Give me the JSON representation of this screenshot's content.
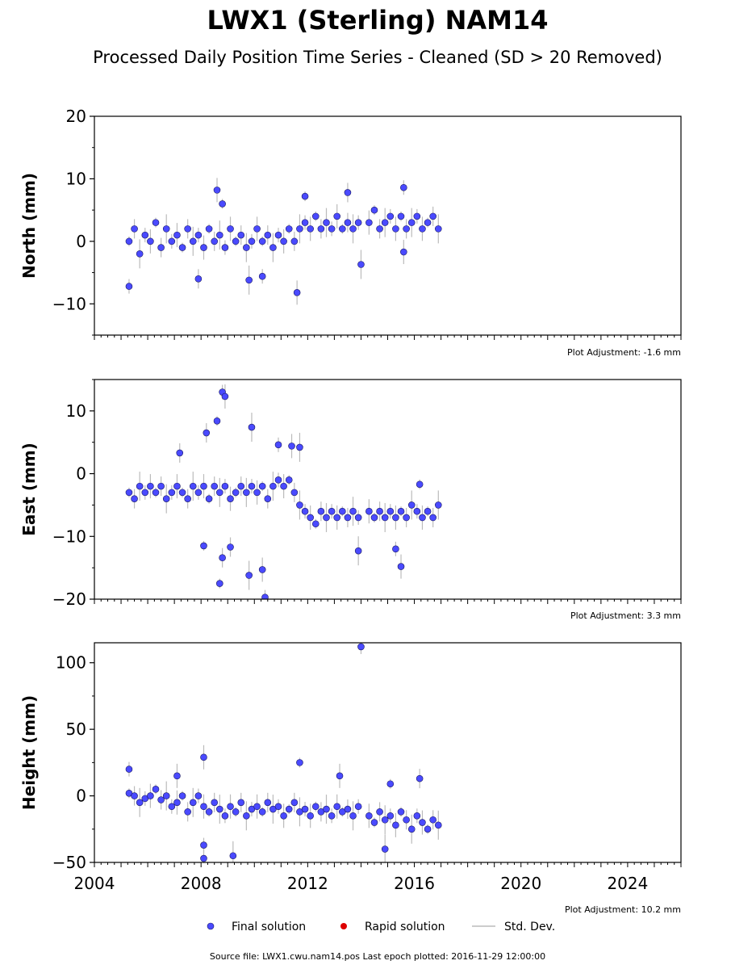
{
  "title": "LWX1 (Sterling) NAM14",
  "subtitle": "Processed Daily Position Time Series - Cleaned (SD > 20 Removed)",
  "colors": {
    "final": "#4a4aff",
    "final_edge": "#1a1a60",
    "rapid": "#dd0000",
    "stddev": "#bbbbbb",
    "axes": "#000000"
  },
  "legend": {
    "final_label": "Final solution",
    "rapid_label": "Rapid solution",
    "std_label": "Std. Dev."
  },
  "footer": {
    "source": "Source file: LWX1.cwu.nam14.pos  Last epoch plotted: 2016-11-29 12:00:00"
  },
  "chart_data": [
    {
      "type": "scatter",
      "ylabel": "North (mm)",
      "ylim": [
        -15,
        20
      ],
      "yticks": [
        -10,
        0,
        10,
        20
      ],
      "xlim": [
        2004,
        2026
      ],
      "adjustment": "Plot Adjustment: -1.6 mm",
      "series": [
        {
          "points": [
            [
              2005.3,
              0
            ],
            [
              2005.5,
              2
            ],
            [
              2005.7,
              -2
            ],
            [
              2005.9,
              1
            ],
            [
              2006.1,
              0
            ],
            [
              2006.3,
              3
            ],
            [
              2006.5,
              -1
            ],
            [
              2006.7,
              2
            ],
            [
              2006.9,
              0
            ],
            [
              2007.1,
              1
            ],
            [
              2007.3,
              -1
            ],
            [
              2007.5,
              2
            ],
            [
              2007.7,
              0
            ],
            [
              2007.9,
              1
            ],
            [
              2008.1,
              -1
            ],
            [
              2008.3,
              2
            ],
            [
              2008.5,
              0
            ],
            [
              2008.7,
              1
            ],
            [
              2008.9,
              -1
            ],
            [
              2009.1,
              2
            ],
            [
              2009.3,
              0
            ],
            [
              2009.5,
              1
            ],
            [
              2009.7,
              -1
            ],
            [
              2009.9,
              0
            ],
            [
              2010.1,
              2
            ],
            [
              2010.3,
              0
            ],
            [
              2010.5,
              1
            ],
            [
              2010.7,
              -1
            ],
            [
              2010.9,
              1
            ],
            [
              2011.1,
              0
            ],
            [
              2011.3,
              2
            ],
            [
              2011.5,
              0
            ],
            [
              2011.7,
              2
            ],
            [
              2011.9,
              3
            ],
            [
              2012.1,
              2
            ],
            [
              2012.3,
              4
            ],
            [
              2012.5,
              2
            ],
            [
              2012.7,
              3
            ],
            [
              2012.9,
              2
            ],
            [
              2013.1,
              4
            ],
            [
              2013.3,
              2
            ],
            [
              2013.5,
              3
            ],
            [
              2013.7,
              2
            ],
            [
              2013.9,
              3
            ],
            [
              2014.3,
              3
            ],
            [
              2014.5,
              5
            ],
            [
              2014.7,
              2
            ],
            [
              2014.9,
              3
            ],
            [
              2015.1,
              4
            ],
            [
              2015.3,
              2
            ],
            [
              2015.5,
              4
            ],
            [
              2015.7,
              2
            ],
            [
              2015.9,
              3
            ],
            [
              2016.1,
              4
            ],
            [
              2016.3,
              2
            ],
            [
              2016.5,
              3
            ],
            [
              2016.7,
              4
            ],
            [
              2016.9,
              2
            ],
            [
              2005.3,
              -7.2
            ],
            [
              2008.6,
              8.2
            ],
            [
              2008.8,
              6
            ],
            [
              2007.9,
              -6
            ],
            [
              2009.8,
              -6.2
            ],
            [
              2010.3,
              -5.6
            ],
            [
              2011.6,
              -8.2
            ],
            [
              2011.9,
              7.2
            ],
            [
              2013.5,
              7.8
            ],
            [
              2014.0,
              -3.7
            ],
            [
              2015.6,
              8.6
            ],
            [
              2015.6,
              -1.7
            ]
          ]
        }
      ]
    },
    {
      "type": "scatter",
      "ylabel": "East (mm)",
      "ylim": [
        -20,
        15
      ],
      "yticks": [
        -20,
        -10,
        0,
        10
      ],
      "xlim": [
        2004,
        2026
      ],
      "adjustment": "Plot Adjustment: 3.3 mm",
      "series": [
        {
          "points": [
            [
              2005.3,
              -3
            ],
            [
              2005.5,
              -4
            ],
            [
              2005.7,
              -2
            ],
            [
              2005.9,
              -3
            ],
            [
              2006.1,
              -2
            ],
            [
              2006.3,
              -3
            ],
            [
              2006.5,
              -2
            ],
            [
              2006.7,
              -4
            ],
            [
              2006.9,
              -3
            ],
            [
              2007.1,
              -2
            ],
            [
              2007.3,
              -3
            ],
            [
              2007.5,
              -4
            ],
            [
              2007.7,
              -2
            ],
            [
              2007.9,
              -3
            ],
            [
              2008.1,
              -2
            ],
            [
              2008.3,
              -4
            ],
            [
              2008.5,
              -2
            ],
            [
              2008.7,
              -3
            ],
            [
              2008.9,
              -2
            ],
            [
              2009.1,
              -4
            ],
            [
              2009.3,
              -3
            ],
            [
              2009.5,
              -2
            ],
            [
              2009.7,
              -3
            ],
            [
              2009.9,
              -2
            ],
            [
              2010.1,
              -3
            ],
            [
              2010.3,
              -2
            ],
            [
              2010.5,
              -4
            ],
            [
              2010.7,
              -2
            ],
            [
              2010.9,
              -1
            ],
            [
              2011.1,
              -2
            ],
            [
              2011.3,
              -1
            ],
            [
              2011.5,
              -3
            ],
            [
              2011.7,
              -5
            ],
            [
              2011.9,
              -6
            ],
            [
              2012.1,
              -7
            ],
            [
              2012.3,
              -8
            ],
            [
              2012.5,
              -6
            ],
            [
              2012.7,
              -7
            ],
            [
              2012.9,
              -6
            ],
            [
              2013.1,
              -7
            ],
            [
              2013.3,
              -6
            ],
            [
              2013.5,
              -7
            ],
            [
              2013.7,
              -6
            ],
            [
              2013.9,
              -7
            ],
            [
              2014.3,
              -6
            ],
            [
              2014.5,
              -7
            ],
            [
              2014.7,
              -6
            ],
            [
              2014.9,
              -7
            ],
            [
              2015.1,
              -6
            ],
            [
              2015.3,
              -7
            ],
            [
              2015.5,
              -6
            ],
            [
              2015.7,
              -7
            ],
            [
              2015.9,
              -5
            ],
            [
              2016.1,
              -6
            ],
            [
              2016.3,
              -7
            ],
            [
              2016.5,
              -6
            ],
            [
              2016.7,
              -7
            ],
            [
              2016.9,
              -5
            ],
            [
              2008.8,
              13
            ],
            [
              2008.9,
              12.3
            ],
            [
              2008.6,
              8.4
            ],
            [
              2008.2,
              6.5
            ],
            [
              2009.9,
              7.4
            ],
            [
              2010.9,
              4.6
            ],
            [
              2011.4,
              4.4
            ],
            [
              2008.7,
              -17.5
            ],
            [
              2008.8,
              -13.4
            ],
            [
              2009.8,
              -16.2
            ],
            [
              2010.4,
              -19.7
            ],
            [
              2010.3,
              -15.3
            ],
            [
              2008.1,
              -11.5
            ],
            [
              2009.1,
              -11.7
            ],
            [
              2013.9,
              -12.3
            ],
            [
              2015.3,
              -12
            ],
            [
              2015.5,
              -14.8
            ],
            [
              2016.2,
              -1.7
            ],
            [
              2007.2,
              3.3
            ],
            [
              2011.7,
              4.2
            ]
          ]
        }
      ]
    },
    {
      "type": "scatter",
      "ylabel": "Height (mm)",
      "ylim": [
        -50,
        115
      ],
      "yticks": [
        -50,
        0,
        50,
        100
      ],
      "xlim": [
        2004,
        2026
      ],
      "xticks": [
        2004,
        2008,
        2012,
        2016,
        2020,
        2024
      ],
      "adjustment": "Plot Adjustment: 10.2 mm",
      "series": [
        {
          "points": [
            [
              2005.3,
              2
            ],
            [
              2005.5,
              0
            ],
            [
              2005.7,
              -5
            ],
            [
              2005.9,
              -2
            ],
            [
              2006.1,
              0
            ],
            [
              2006.3,
              5
            ],
            [
              2006.5,
              -3
            ],
            [
              2006.7,
              0
            ],
            [
              2006.9,
              -8
            ],
            [
              2007.1,
              -5
            ],
            [
              2007.3,
              0
            ],
            [
              2007.5,
              -12
            ],
            [
              2007.7,
              -5
            ],
            [
              2007.9,
              0
            ],
            [
              2008.1,
              -8
            ],
            [
              2008.3,
              -12
            ],
            [
              2008.5,
              -5
            ],
            [
              2008.7,
              -10
            ],
            [
              2008.9,
              -15
            ],
            [
              2009.1,
              -8
            ],
            [
              2009.3,
              -12
            ],
            [
              2009.5,
              -5
            ],
            [
              2009.7,
              -15
            ],
            [
              2009.9,
              -10
            ],
            [
              2010.1,
              -8
            ],
            [
              2010.3,
              -12
            ],
            [
              2010.5,
              -5
            ],
            [
              2010.7,
              -10
            ],
            [
              2010.9,
              -8
            ],
            [
              2011.1,
              -15
            ],
            [
              2011.3,
              -10
            ],
            [
              2011.5,
              -5
            ],
            [
              2011.7,
              -12
            ],
            [
              2011.9,
              -10
            ],
            [
              2012.1,
              -15
            ],
            [
              2012.3,
              -8
            ],
            [
              2012.5,
              -12
            ],
            [
              2012.7,
              -10
            ],
            [
              2012.9,
              -15
            ],
            [
              2013.1,
              -8
            ],
            [
              2013.3,
              -12
            ],
            [
              2013.5,
              -10
            ],
            [
              2013.7,
              -15
            ],
            [
              2013.9,
              -8
            ],
            [
              2014.3,
              -15
            ],
            [
              2014.5,
              -20
            ],
            [
              2014.7,
              -12
            ],
            [
              2014.9,
              -18
            ],
            [
              2015.1,
              -15
            ],
            [
              2015.3,
              -22
            ],
            [
              2015.5,
              -12
            ],
            [
              2015.7,
              -18
            ],
            [
              2015.9,
              -25
            ],
            [
              2016.1,
              -15
            ],
            [
              2016.3,
              -20
            ],
            [
              2016.5,
              -25
            ],
            [
              2016.7,
              -18
            ],
            [
              2016.9,
              -22
            ],
            [
              2014.0,
              112
            ],
            [
              2008.1,
              29
            ],
            [
              2011.7,
              25
            ],
            [
              2008.1,
              -47
            ],
            [
              2009.2,
              -45
            ],
            [
              2008.1,
              -37
            ],
            [
              2013.2,
              15
            ],
            [
              2015.1,
              9
            ],
            [
              2016.2,
              13
            ],
            [
              2014.9,
              -40
            ],
            [
              2005.3,
              20
            ],
            [
              2007.1,
              15
            ]
          ]
        }
      ]
    }
  ]
}
